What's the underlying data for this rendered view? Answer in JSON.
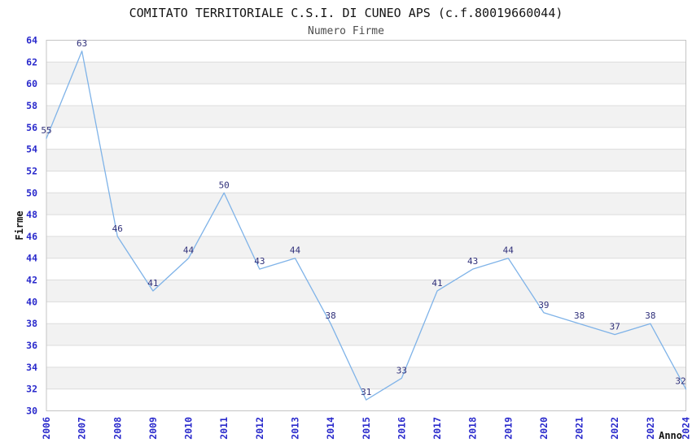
{
  "chart_data": {
    "type": "line",
    "title": "COMITATO TERRITORIALE C.S.I. DI CUNEO APS (c.f.80019660044)",
    "subtitle": "Numero Firme",
    "xlabel": "Anno",
    "ylabel": "Firme",
    "x": [
      2006,
      2007,
      2008,
      2009,
      2010,
      2011,
      2012,
      2013,
      2014,
      2015,
      2016,
      2017,
      2018,
      2019,
      2020,
      2021,
      2022,
      2023,
      2024
    ],
    "series": [
      {
        "name": "Numero Firme",
        "values": [
          55,
          63,
          46,
          41,
          44,
          50,
          43,
          44,
          38,
          31,
          33,
          41,
          43,
          44,
          39,
          38,
          37,
          38,
          32
        ]
      }
    ],
    "ylim": [
      30,
      64
    ],
    "ytick_step": 2,
    "data_labels_shown": true,
    "legend": "none",
    "grid": "horizontal-bands-alternating",
    "markers": "none",
    "colors": {
      "line": "#7FB3E8",
      "band_gray": "#F2F2F2",
      "band_white": "#FFFFFF",
      "gridline": "#DCDCDC",
      "plot_border": "#C4C4C4",
      "tick_label": "#2A2ACC",
      "data_label": "#30307A",
      "title": "#141414",
      "subtitle": "#4D4D4D",
      "axis_title": "#141414",
      "background": "#FFFFFF"
    }
  }
}
